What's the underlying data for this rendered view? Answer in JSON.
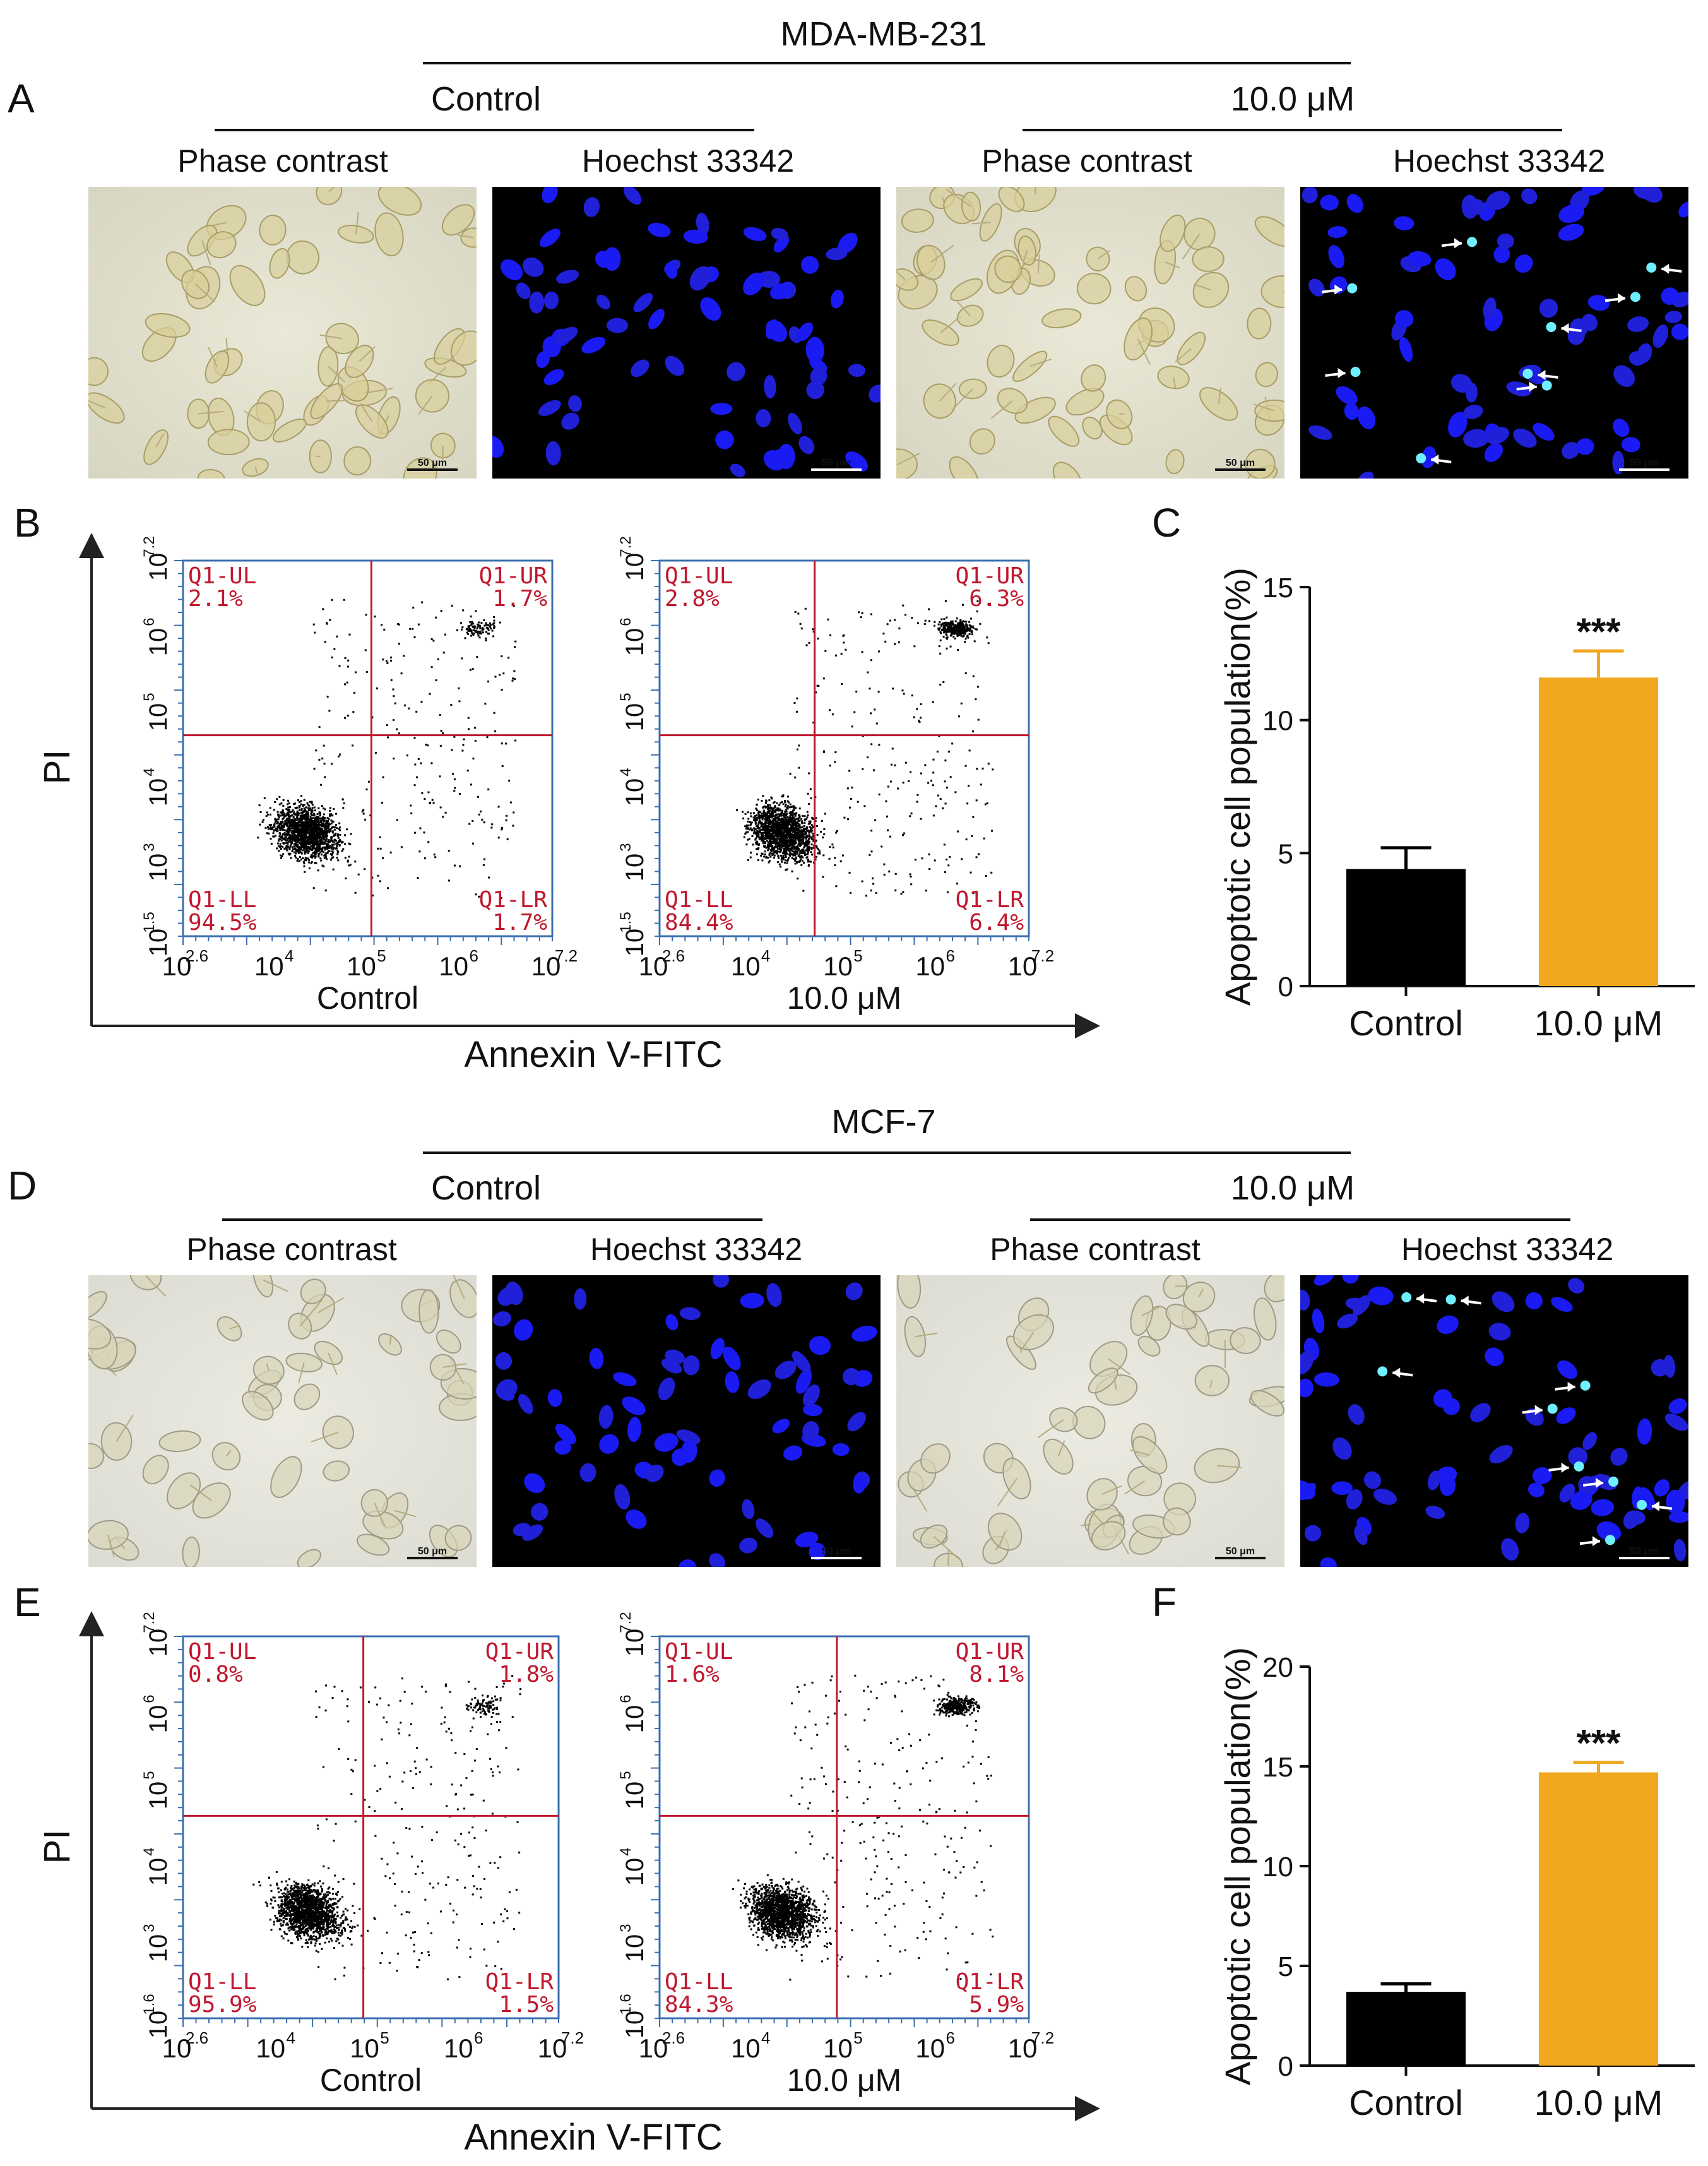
{
  "rows": [
    {
      "cell_line": "MDA-MB-231",
      "panel_label": "A",
      "groups": [
        {
          "name": "Control",
          "channels": [
            "Phase contrast",
            "Hoechst 33342"
          ]
        },
        {
          "name": "10.0 μM",
          "channels": [
            "Phase contrast",
            "Hoechst 33342"
          ]
        }
      ],
      "scale_label": "50 μm"
    },
    {
      "cell_line": "MCF-7",
      "panel_label": "D",
      "groups": [
        {
          "name": "Control",
          "channels": [
            "Phase contrast",
            "Hoechst 33342"
          ]
        },
        {
          "name": "10.0 μM",
          "channels": [
            "Phase contrast",
            "Hoechst 33342"
          ]
        }
      ],
      "scale_label": "50 μm"
    }
  ],
  "flow_panels": [
    {
      "panel_label": "B",
      "ylabel": "PI",
      "xlabel": "Annexin V-FITC",
      "plots": [
        {
          "caption": "Control",
          "quadrants": {
            "UL": "Q1-UL",
            "UL_val": "2.1%",
            "UR": "Q1-UR",
            "UR_val": "1.7%",
            "LL": "Q1-LL",
            "LL_val": "94.5%",
            "LR": "Q1-LR",
            "LR_val": "1.7%"
          },
          "xticks": [
            "2.6",
            "4",
            "5",
            "6",
            "7.2"
          ],
          "yticks": [
            "1.5",
            "3",
            "4",
            "5",
            "6",
            "7.2"
          ]
        },
        {
          "caption": "10.0 μM",
          "quadrants": {
            "UL": "Q1-UL",
            "UL_val": "2.8%",
            "UR": "Q1-UR",
            "UR_val": "6.3%",
            "LL": "Q1-LL",
            "LL_val": "84.4%",
            "LR": "Q1-LR",
            "LR_val": "6.4%"
          },
          "xticks": [
            "2.6",
            "4",
            "5",
            "6",
            "7.2"
          ],
          "yticks": [
            "1.5",
            "3",
            "4",
            "5",
            "6",
            "7.2"
          ]
        }
      ]
    },
    {
      "panel_label": "E",
      "ylabel": "PI",
      "xlabel": "Annexin V-FITC",
      "plots": [
        {
          "caption": "Control",
          "quadrants": {
            "UL": "Q1-UL",
            "UL_val": "0.8%",
            "UR": "Q1-UR",
            "UR_val": "1.8%",
            "LL": "Q1-LL",
            "LL_val": "95.9%",
            "LR": "Q1-LR",
            "LR_val": "1.5%"
          },
          "xticks": [
            "2.6",
            "4",
            "5",
            "6",
            "7.2"
          ],
          "yticks": [
            "1.6",
            "3",
            "4",
            "5",
            "6",
            "7.2"
          ]
        },
        {
          "caption": "10.0 μM",
          "quadrants": {
            "UL": "Q1-UL",
            "UL_val": "1.6%",
            "UR": "Q1-UR",
            "UR_val": "8.1%",
            "LL": "Q1-LL",
            "LL_val": "84.3%",
            "LR": "Q1-LR",
            "LR_val": "5.9%"
          },
          "xticks": [
            "2.6",
            "4",
            "5",
            "6",
            "7.2"
          ],
          "yticks": [
            "1.6",
            "3",
            "4",
            "5",
            "6",
            "7.2"
          ]
        }
      ]
    }
  ],
  "chart_data": [
    {
      "panel_label": "C",
      "type": "bar",
      "categories": [
        "Control",
        "10.0 μM"
      ],
      "values": [
        4.4,
        11.6
      ],
      "errors": [
        0.8,
        1.0
      ],
      "ylabel": "Apoptotic cell population(%)",
      "ylim": [
        0,
        15
      ],
      "yticks": [
        0,
        5,
        10,
        15
      ],
      "significance": [
        "",
        "***"
      ],
      "colors": [
        "#000000",
        "#f0a81f"
      ]
    },
    {
      "panel_label": "F",
      "type": "bar",
      "categories": [
        "Control",
        "10.0 μM"
      ],
      "values": [
        3.7,
        14.7
      ],
      "errors": [
        0.4,
        0.5
      ],
      "ylabel": "Apoptotic cell population(%)",
      "ylim": [
        0,
        20
      ],
      "yticks": [
        0,
        5,
        10,
        15,
        20
      ],
      "significance": [
        "",
        "***"
      ],
      "colors": [
        "#000000",
        "#f0a81f"
      ]
    }
  ]
}
